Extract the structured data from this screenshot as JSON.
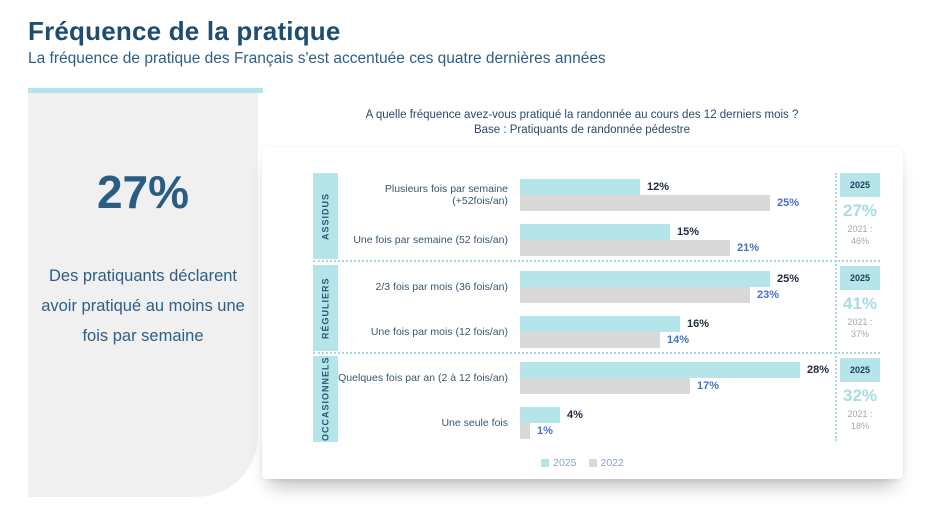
{
  "page": {
    "title": "Fréquence de la pratique",
    "subtitle": "La fréquence de pratique des Français s'est accentuée ces quatre dernières années"
  },
  "stat_panel": {
    "value": "27%",
    "description": "Des pratiquants déclarent avoir pratiqué au moins une fois par semaine"
  },
  "chart_data": {
    "type": "bar",
    "orientation": "horizontal",
    "title": "A quelle fréquence avez-vous pratiqué la randonnée au cours des 12 derniers mois ?",
    "base": "Base : Pratiquants de randonnée pédestre",
    "unit": "%",
    "xlim": [
      0,
      30
    ],
    "legend": [
      {
        "label": "2025",
        "color": "#b5e5e9"
      },
      {
        "label": "2022",
        "color": "#d9d9d9"
      }
    ],
    "groups": [
      {
        "name": "ASSIDUS",
        "rows": [
          {
            "label": "Plusieurs fois par semaine (+52fois/an)",
            "y2025": 12,
            "label_2025": "12%",
            "y2022": 25,
            "label_2022": "25%"
          },
          {
            "label": "Une fois par semaine (52 fois/an)",
            "y2025": 15,
            "label_2025": "15%",
            "y2022": 21,
            "label_2022": "21%"
          }
        ],
        "summary": {
          "badge": "2025",
          "value": "27%",
          "prev_label": "2021 :",
          "prev_value": "46%"
        }
      },
      {
        "name": "RÉGULIERS",
        "rows": [
          {
            "label": "2/3 fois par mois (36 fois/an)",
            "y2025": 25,
            "label_2025": "25%",
            "y2022": 23,
            "label_2022": "23%"
          },
          {
            "label": "Une fois par mois (12 fois/an)",
            "y2025": 16,
            "label_2025": "16%",
            "y2022": 14,
            "label_2022": "14%"
          }
        ],
        "summary": {
          "badge": "2025",
          "value": "41%",
          "prev_label": "2021 :",
          "prev_value": "37%"
        }
      },
      {
        "name": "OCCASIONNELS",
        "rows": [
          {
            "label": "Quelques fois par an (2 à 12 fois/an)",
            "y2025": 28,
            "label_2025": "28%",
            "y2022": 17,
            "label_2022": "17%"
          },
          {
            "label": "Une seule fois",
            "y2025": 4,
            "label_2025": "4%",
            "y2022": 1,
            "label_2022": "1%"
          }
        ],
        "summary": {
          "badge": "2025",
          "value": "32%",
          "prev_label": "2021 :",
          "prev_value": "18%"
        }
      }
    ]
  }
}
